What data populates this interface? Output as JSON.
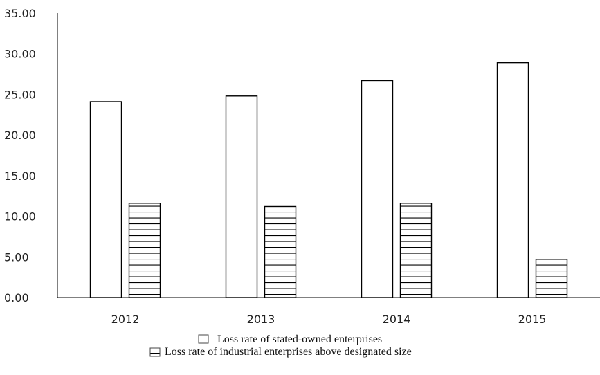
{
  "chart_data": {
    "type": "bar",
    "title": "",
    "xlabel": "",
    "ylabel": "",
    "categories": [
      "2012",
      "2013",
      "2014",
      "2015"
    ],
    "ylim": [
      0,
      35
    ],
    "yticks": [
      "0.00",
      "5.00",
      "10.00",
      "15.00",
      "20.00",
      "25.00",
      "30.00",
      "35.00"
    ],
    "series": [
      {
        "name": "Loss rate of stated-owned enterprises",
        "values": [
          24.1,
          24.8,
          26.7,
          28.9
        ],
        "fill": "blank"
      },
      {
        "name": "Loss rate of industrial enterprises above designated size",
        "values": [
          11.6,
          11.2,
          11.6,
          4.7
        ],
        "fill": "horizontal-stripes"
      }
    ],
    "grid": false,
    "legend_position": "bottom-center"
  }
}
